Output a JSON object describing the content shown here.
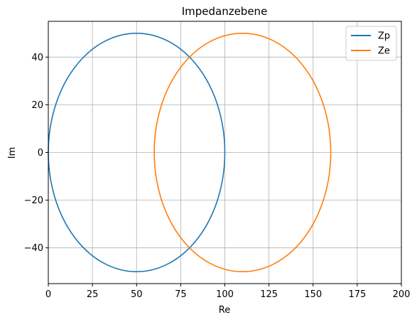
{
  "chart_data": {
    "type": "line",
    "title": "Impedanzebene",
    "xlabel": "Re",
    "ylabel": "Im",
    "xlim": [
      0,
      200
    ],
    "ylim": [
      -55,
      55
    ],
    "xticks": [
      0,
      25,
      50,
      75,
      100,
      125,
      150,
      175,
      200
    ],
    "yticks": [
      -40,
      -20,
      0,
      20,
      40
    ],
    "xtick_labels": [
      "0",
      "25",
      "50",
      "75",
      "100",
      "125",
      "150",
      "175",
      "200"
    ],
    "ytick_labels": [
      "−40",
      "−20",
      "0",
      "20",
      "40"
    ],
    "grid": true,
    "legend_position": "top-right",
    "series": [
      {
        "name": "Zp",
        "color": "#1f77b4",
        "shape": "ellipse",
        "center_re": 50,
        "center_im": 0,
        "radius_re": 50,
        "radius_im": 50
      },
      {
        "name": "Ze",
        "color": "#ff7f0e",
        "shape": "ellipse",
        "center_re": 110,
        "center_im": 0,
        "radius_re": 50,
        "radius_im": 50
      }
    ]
  }
}
